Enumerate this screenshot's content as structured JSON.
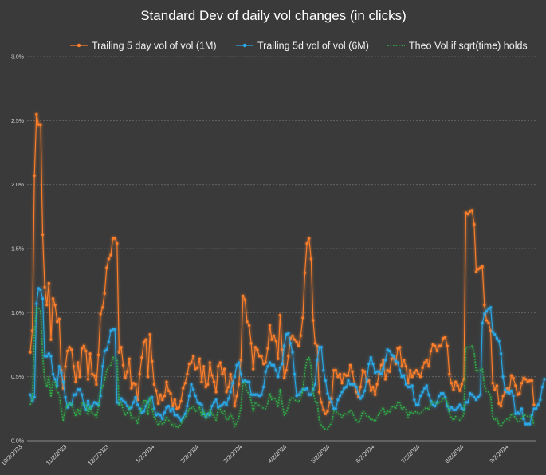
{
  "chart_data": {
    "type": "line",
    "title": "Standard Dev of daily vol changes (in clicks)",
    "xlabel": "",
    "ylabel": "",
    "ylim": [
      0,
      0.03
    ],
    "y_ticks": [
      "0.0%",
      "0.5%",
      "1.0%",
      "1.5%",
      "2.0%",
      "2.5%",
      "3.0%"
    ],
    "y_tick_values": [
      0,
      0.005,
      0.01,
      0.015,
      0.02,
      0.025,
      0.03
    ],
    "x_tick_labels": [
      "10/2/2023",
      "11/2/2023",
      "12/2/2023",
      "1/2/2024",
      "2/2/2024",
      "3/2/2024",
      "4/2/2024",
      "5/2/2024",
      "6/2/2024",
      "7/2/2024",
      "8/2/2024",
      "9/2/2024"
    ],
    "grid": true,
    "legend_position": "top",
    "series": [
      {
        "name": "Trailing 5 day vol of vol (1M)",
        "color": "#ff7f2a",
        "marker": "circle",
        "style": "solid",
        "values": [
          0.0069,
          0.0086,
          0.0207,
          0.0255,
          0.0247,
          0.0247,
          0.0161,
          0.012,
          0.0106,
          0.0123,
          0.0079,
          0.0111,
          0.0106,
          0.0093,
          0.0095,
          0.0055,
          0.0041,
          0.0058,
          0.007,
          0.0073,
          0.0071,
          0.0058,
          0.0046,
          0.0061,
          0.005,
          0.0072,
          0.0074,
          0.007,
          0.0048,
          0.0068,
          0.0052,
          0.0051,
          0.0044,
          0.0067,
          0.0099,
          0.0104,
          0.0115,
          0.0135,
          0.0142,
          0.0145,
          0.0158,
          0.0158,
          0.0154,
          0.0069,
          0.0073,
          0.0059,
          0.0049,
          0.0054,
          0.0064,
          0.0041,
          0.0045,
          0.0044,
          0.0032,
          0.0052,
          0.0065,
          0.0077,
          0.0079,
          0.005,
          0.0083,
          0.0062,
          0.0044,
          0.0039,
          0.0029,
          0.0036,
          0.0032,
          0.0035,
          0.0046,
          0.0039,
          0.0037,
          0.0027,
          0.0032,
          0.0025,
          0.0026,
          0.0031,
          0.0041,
          0.0045,
          0.0052,
          0.006,
          0.0061,
          0.0066,
          0.0056,
          0.0057,
          0.0064,
          0.0046,
          0.0058,
          0.0042,
          0.0044,
          0.0061,
          0.0051,
          0.0046,
          0.0038,
          0.0058,
          0.0061,
          0.0052,
          0.0056,
          0.0038,
          0.0042,
          0.0052,
          0.0045,
          0.0027,
          0.0035,
          0.0044,
          0.0063,
          0.0113,
          0.011,
          0.0093,
          0.009,
          0.0076,
          0.0056,
          0.0073,
          0.0071,
          0.0066,
          0.0066,
          0.006,
          0.0061,
          0.0072,
          0.009,
          0.0079,
          0.0082,
          0.0078,
          0.0064,
          0.0098,
          0.0071,
          0.0049,
          0.0055,
          0.0066,
          0.008,
          0.0082,
          0.0079,
          0.0077,
          0.0074,
          0.0082,
          0.0096,
          0.0131,
          0.0154,
          0.0158,
          0.0142,
          0.0094,
          0.0076,
          0.0074,
          0.0038,
          0.003,
          0.0024,
          0.0021,
          0.0023,
          0.003,
          0.0033,
          0.0055,
          0.0055,
          0.005,
          0.0052,
          0.0045,
          0.0052,
          0.0051,
          0.0051,
          0.0059,
          0.0054,
          0.0044,
          0.0038,
          0.0034,
          0.0042,
          0.0055,
          0.0054,
          0.0046,
          0.0047,
          0.0039,
          0.0042,
          0.0036,
          0.0044,
          0.0052,
          0.0059,
          0.0063,
          0.0048,
          0.0055,
          0.0054,
          0.0064,
          0.0065,
          0.006,
          0.0072,
          0.0073,
          0.0058,
          0.0063,
          0.0058,
          0.0045,
          0.0055,
          0.005,
          0.0053,
          0.0055,
          0.0052,
          0.005,
          0.0057,
          0.0061,
          0.0063,
          0.0058,
          0.007,
          0.0075,
          0.0074,
          0.007,
          0.0074,
          0.0074,
          0.008,
          0.0081,
          0.0074,
          0.0052,
          0.0045,
          0.004,
          0.0046,
          0.0043,
          0.0039,
          0.0044,
          0.0048,
          0.0178,
          0.0177,
          0.0179,
          0.018,
          0.0169,
          0.0132,
          0.0134,
          0.0135,
          0.0136,
          0.0106,
          0.0094,
          0.0092,
          0.0086,
          0.0045,
          0.004,
          0.0043,
          0.0029,
          0.0027,
          0.0035,
          0.0038,
          0.0041,
          0.0038,
          0.0051,
          0.0049,
          0.0043,
          0.0036,
          0.0037,
          0.0045,
          0.0049,
          0.0048,
          0.0046,
          0.0047,
          0.0047,
          0.0028
        ]
      },
      {
        "name": "Trailing 5d vol of vol (6M)",
        "color": "#2aa8e8",
        "marker": "circle",
        "style": "solid",
        "values": [
          0.0036,
          0.0031,
          0.0034,
          0.0107,
          0.0119,
          0.0118,
          0.0111,
          0.0066,
          0.0066,
          0.0068,
          0.0066,
          0.0052,
          0.0048,
          0.0043,
          0.0058,
          0.0053,
          0.0046,
          0.0034,
          0.0026,
          0.0029,
          0.0028,
          0.0036,
          0.0036,
          0.004,
          0.004,
          0.0036,
          0.0028,
          0.0024,
          0.0031,
          0.0025,
          0.0027,
          0.003,
          0.0029,
          0.0028,
          0.0035,
          0.0058,
          0.007,
          0.0071,
          0.0077,
          0.0086,
          0.0087,
          0.0087,
          0.003,
          0.0029,
          0.0033,
          0.0031,
          0.003,
          0.0027,
          0.0025,
          0.0026,
          0.003,
          0.0034,
          0.0028,
          0.0025,
          0.0022,
          0.0023,
          0.0027,
          0.003,
          0.0033,
          0.0034,
          0.0025,
          0.002,
          0.0021,
          0.002,
          0.0017,
          0.0022,
          0.0026,
          0.0027,
          0.0023,
          0.0025,
          0.002,
          0.002,
          0.0018,
          0.0016,
          0.0018,
          0.0021,
          0.0027,
          0.0035,
          0.0044,
          0.004,
          0.0035,
          0.003,
          0.0029,
          0.0028,
          0.0021,
          0.0019,
          0.0021,
          0.002,
          0.0027,
          0.003,
          0.0032,
          0.0026,
          0.0027,
          0.0028,
          0.003,
          0.0028,
          0.0033,
          0.0038,
          0.0045,
          0.005,
          0.0059,
          0.0061,
          0.0052,
          0.0046,
          0.0047,
          0.0046,
          0.0046,
          0.0036,
          0.0036,
          0.0036,
          0.0036,
          0.0035,
          0.0036,
          0.0042,
          0.0054,
          0.0058,
          0.0061,
          0.0059,
          0.0059,
          0.0055,
          0.005,
          0.0057,
          0.006,
          0.0074,
          0.0083,
          0.0084,
          0.0076,
          0.0069,
          0.0052,
          0.0035,
          0.0036,
          0.0038,
          0.004,
          0.004,
          0.0041,
          0.0036,
          0.0036,
          0.004,
          0.0044,
          0.0063,
          0.0073,
          0.0073,
          0.0055,
          0.0047,
          0.0037,
          0.0033,
          0.003,
          0.0025,
          0.0025,
          0.0032,
          0.0035,
          0.0038,
          0.0041,
          0.0042,
          0.0047,
          0.0044,
          0.0044,
          0.0044,
          0.0042,
          0.0037,
          0.0033,
          0.0035,
          0.0039,
          0.0048,
          0.006,
          0.0065,
          0.006,
          0.0053,
          0.0054,
          0.0054,
          0.0052,
          0.0056,
          0.0063,
          0.0071,
          0.007,
          0.0067,
          0.0066,
          0.0062,
          0.0061,
          0.0055,
          0.005,
          0.0051,
          0.0044,
          0.0042,
          0.0042,
          0.0043,
          0.0032,
          0.0028,
          0.0028,
          0.0035,
          0.0038,
          0.0041,
          0.0043,
          0.0036,
          0.0031,
          0.0028,
          0.0027,
          0.003,
          0.0035,
          0.0037,
          0.0037,
          0.0034,
          0.0027,
          0.0024,
          0.0026,
          0.0024,
          0.0024,
          0.0026,
          0.0028,
          0.0025,
          0.0024,
          0.003,
          0.003,
          0.0037,
          0.0036,
          0.0034,
          0.0032,
          0.0034,
          0.0036,
          0.0092,
          0.0099,
          0.0101,
          0.0103,
          0.0104,
          0.0085,
          0.0083,
          0.008,
          0.0078,
          0.0068,
          0.005,
          0.004,
          0.0038,
          0.0037,
          0.0039,
          0.0035,
          0.0021,
          0.0022,
          0.0021,
          0.0025,
          0.0017,
          0.0013,
          0.0013,
          0.0013,
          0.002,
          0.0025,
          0.0025,
          0.0028,
          0.0032,
          0.0042,
          0.0048
        ]
      },
      {
        "name": "Theo Vol if sqrt(time) holds",
        "color": "#2eb84a",
        "marker": "none",
        "style": "dotted",
        "values": [
          0.0028,
          0.0032,
          0.0086,
          0.0104,
          0.0104,
          0.0101,
          0.0066,
          0.0048,
          0.0042,
          0.005,
          0.0034,
          0.0046,
          0.0046,
          0.0038,
          0.0037,
          0.0024,
          0.0016,
          0.0024,
          0.0028,
          0.0029,
          0.0029,
          0.0024,
          0.0019,
          0.0025,
          0.002,
          0.0029,
          0.003,
          0.0028,
          0.002,
          0.0028,
          0.0021,
          0.0021,
          0.0018,
          0.0026,
          0.004,
          0.0042,
          0.0047,
          0.0055,
          0.0058,
          0.0059,
          0.0065,
          0.0065,
          0.0063,
          0.0028,
          0.003,
          0.0024,
          0.002,
          0.0022,
          0.0026,
          0.0017,
          0.0018,
          0.0018,
          0.0013,
          0.0021,
          0.0026,
          0.0031,
          0.0032,
          0.002,
          0.0034,
          0.0025,
          0.0018,
          0.0016,
          0.0012,
          0.0015,
          0.0013,
          0.0014,
          0.0019,
          0.0016,
          0.0015,
          0.0011,
          0.0013,
          0.001,
          0.0011,
          0.0013,
          0.0017,
          0.0018,
          0.0021,
          0.0025,
          0.0025,
          0.0027,
          0.0023,
          0.0023,
          0.0026,
          0.0019,
          0.0024,
          0.0017,
          0.0018,
          0.0025,
          0.0021,
          0.0019,
          0.0016,
          0.0024,
          0.0025,
          0.0021,
          0.0023,
          0.0016,
          0.0017,
          0.0021,
          0.0018,
          0.0011,
          0.0014,
          0.0018,
          0.0026,
          0.0046,
          0.0045,
          0.0038,
          0.0037,
          0.0031,
          0.0023,
          0.003,
          0.0029,
          0.0027,
          0.0027,
          0.0025,
          0.0025,
          0.0029,
          0.0037,
          0.0032,
          0.0034,
          0.0032,
          0.0026,
          0.004,
          0.0029,
          0.002,
          0.0022,
          0.0027,
          0.0033,
          0.0034,
          0.0032,
          0.0031,
          0.003,
          0.0034,
          0.0039,
          0.0054,
          0.0063,
          0.0065,
          0.0058,
          0.0038,
          0.0031,
          0.003,
          0.0016,
          0.0012,
          0.001,
          0.0009,
          0.0009,
          0.0012,
          0.0014,
          0.0023,
          0.0023,
          0.0021,
          0.0021,
          0.0018,
          0.0021,
          0.0021,
          0.0021,
          0.0024,
          0.0022,
          0.0018,
          0.0016,
          0.0014,
          0.0017,
          0.0023,
          0.0022,
          0.0019,
          0.0019,
          0.0016,
          0.0017,
          0.0015,
          0.0018,
          0.0021,
          0.0024,
          0.0026,
          0.002,
          0.0023,
          0.0022,
          0.0026,
          0.0027,
          0.0025,
          0.003,
          0.003,
          0.0024,
          0.0026,
          0.0024,
          0.0018,
          0.0023,
          0.0021,
          0.0022,
          0.0023,
          0.0021,
          0.0021,
          0.0023,
          0.0025,
          0.0026,
          0.0024,
          0.0029,
          0.0031,
          0.003,
          0.0029,
          0.003,
          0.003,
          0.0033,
          0.0033,
          0.003,
          0.0021,
          0.0018,
          0.0016,
          0.0019,
          0.0018,
          0.0016,
          0.0018,
          0.002,
          0.0073,
          0.0073,
          0.0073,
          0.0074,
          0.0069,
          0.0054,
          0.0055,
          0.0055,
          0.0056,
          0.0043,
          0.0038,
          0.0038,
          0.0035,
          0.0018,
          0.0016,
          0.0018,
          0.0012,
          0.0011,
          0.0014,
          0.0016,
          0.0017,
          0.0016,
          0.0021,
          0.002,
          0.0018,
          0.0015,
          0.0015,
          0.0018,
          0.002,
          0.002,
          0.0019,
          0.0019,
          0.0019,
          0.0012
        ]
      }
    ]
  }
}
